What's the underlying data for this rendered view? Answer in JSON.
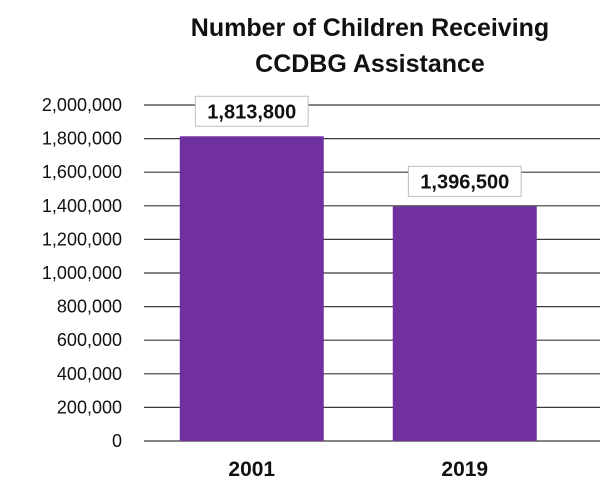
{
  "chart_data": {
    "type": "bar",
    "title_lines": [
      "Number of Children Receiving",
      "CCDBG Assistance"
    ],
    "categories": [
      "2001",
      "2019"
    ],
    "values": [
      1813800,
      1396500
    ],
    "data_labels": [
      "1,813,800",
      "1,396,500"
    ],
    "ylim": [
      0,
      2000000
    ],
    "y_ticks": [
      0,
      200000,
      400000,
      600000,
      800000,
      1000000,
      1200000,
      1400000,
      1600000,
      1800000,
      2000000
    ],
    "y_tick_labels": [
      "0",
      "200,000",
      "400,000",
      "600,000",
      "800,000",
      "1,000,000",
      "1,200,000",
      "1,400,000",
      "1,600,000",
      "1,800,000",
      "2,000,000"
    ],
    "grid": true,
    "legend": "none",
    "bar_color": "#7030a0",
    "grid_color": "#3a3a3a"
  }
}
